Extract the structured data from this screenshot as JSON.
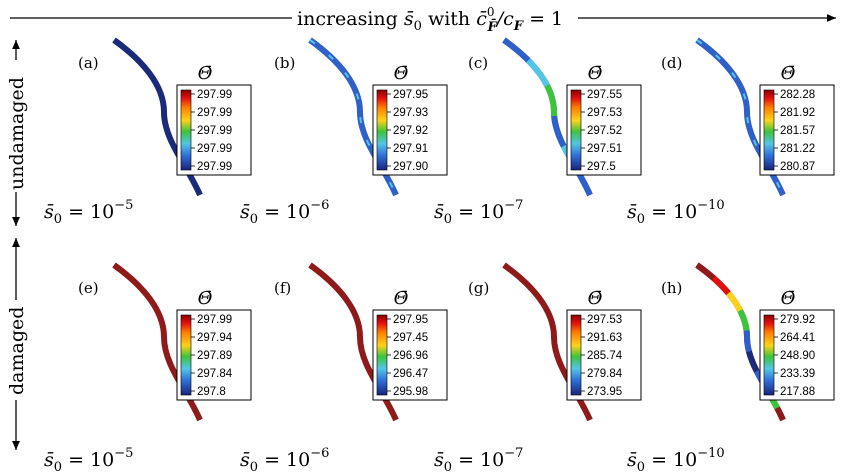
{
  "header": {
    "prefix": "increasing ",
    "s0": "s̄",
    "s0_sub": "0",
    "with": " with ",
    "c": "c̄",
    "c_sup": "0",
    "c_sub": "F̄",
    "slash": "/c",
    "cF_sub": "F",
    "eq": " = 1"
  },
  "row_labels": {
    "top": "undamaged",
    "bottom": "damaged"
  },
  "legend_title": "Θ̄",
  "panels": [
    {
      "tag": "(a)",
      "s0_exp": "−5",
      "legend": [
        "297.99",
        "297.99",
        "297.99",
        "297.99",
        "297.99"
      ]
    },
    {
      "tag": "(b)",
      "s0_exp": "−6",
      "legend": [
        "297.95",
        "297.93",
        "297.92",
        "297.91",
        "297.90"
      ]
    },
    {
      "tag": "(c)",
      "s0_exp": "−7",
      "legend": [
        "297.55",
        "297.53",
        "297.52",
        "297.51",
        "297.5"
      ]
    },
    {
      "tag": "(d)",
      "s0_exp": "−10",
      "legend": [
        "282.28",
        "281.92",
        "281.57",
        "281.22",
        "280.87"
      ]
    },
    {
      "tag": "(e)",
      "s0_exp": "−5",
      "legend": [
        "297.99",
        "297.94",
        "297.89",
        "297.84",
        "297.8"
      ]
    },
    {
      "tag": "(f)",
      "s0_exp": "−6",
      "legend": [
        "297.95",
        "297.45",
        "296.96",
        "296.47",
        "295.98"
      ]
    },
    {
      "tag": "(g)",
      "s0_exp": "−7",
      "legend": [
        "297.53",
        "291.63",
        "285.74",
        "279.84",
        "273.95"
      ]
    },
    {
      "tag": "(h)",
      "s0_exp": "−10",
      "legend": [
        "279.92",
        "264.41",
        "248.90",
        "233.39",
        "217.88"
      ]
    }
  ],
  "s0_label": {
    "s": "s̄",
    "sub": "0",
    "eq": " = 10"
  },
  "colors": {
    "colormap": [
      "#1a237e",
      "#2f6fd6",
      "#52c6e6",
      "#3cc43c",
      "#ffd21a",
      "#ff7f00",
      "#e01010",
      "#8b0000"
    ],
    "uniform_navy": "#1c2a7a",
    "uniform_blue": "#2f5fc8",
    "uniform_darkred": "#8e1a1a"
  }
}
